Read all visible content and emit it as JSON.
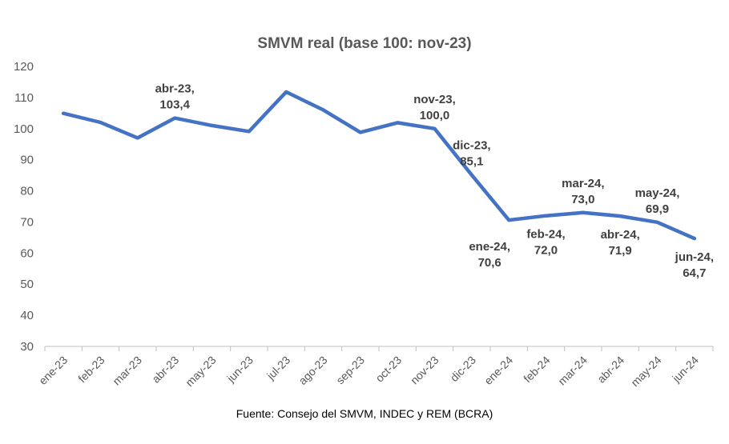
{
  "chart_data": {
    "type": "line",
    "title": "SMVM real (base 100: nov-23)",
    "source": "Fuente: Consejo del SMVM, INDEC y REM (BCRA)",
    "xlabel": "",
    "ylabel": "",
    "ylim": [
      30,
      120
    ],
    "y_ticks": [
      30,
      40,
      50,
      60,
      70,
      80,
      90,
      100,
      110,
      120
    ],
    "grid": false,
    "legend": "none",
    "line_color": "#4472C4",
    "categories": [
      "ene-23",
      "feb-23",
      "mar-23",
      "abr-23",
      "may-23",
      "jun-23",
      "jul-23",
      "ago-23",
      "sep-23",
      "oct-23",
      "nov-23",
      "dic-23",
      "ene-24",
      "feb-24",
      "mar-24",
      "abr-24",
      "may-24",
      "jun-24"
    ],
    "series": [
      {
        "values": [
          104.9,
          102.0,
          97.0,
          103.4,
          101.0,
          99.1,
          111.8,
          106.0,
          98.8,
          101.9,
          100.0,
          85.1,
          70.6,
          72.0,
          73.0,
          71.9,
          69.9,
          64.7
        ]
      }
    ],
    "annotations": [
      {
        "index": 3,
        "line1": "abr-23,",
        "line2": "103,4",
        "position": "above"
      },
      {
        "index": 10,
        "line1": "nov-23,",
        "line2": "100,0",
        "position": "above"
      },
      {
        "index": 11,
        "line1": "dic-23,",
        "line2": "85,1",
        "position": "above"
      },
      {
        "index": 12,
        "line1": "ene-24,",
        "line2": "70,6",
        "position": "below-left"
      },
      {
        "index": 13,
        "line1": "feb-24,",
        "line2": "72,0",
        "position": "below"
      },
      {
        "index": 14,
        "line1": "mar-24,",
        "line2": "73,0",
        "position": "above"
      },
      {
        "index": 15,
        "line1": "abr-24,",
        "line2": "71,9",
        "position": "below"
      },
      {
        "index": 16,
        "line1": "may-24,",
        "line2": "69,9",
        "position": "above"
      },
      {
        "index": 17,
        "line1": "jun-24,",
        "line2": "64,7",
        "position": "below"
      }
    ]
  }
}
